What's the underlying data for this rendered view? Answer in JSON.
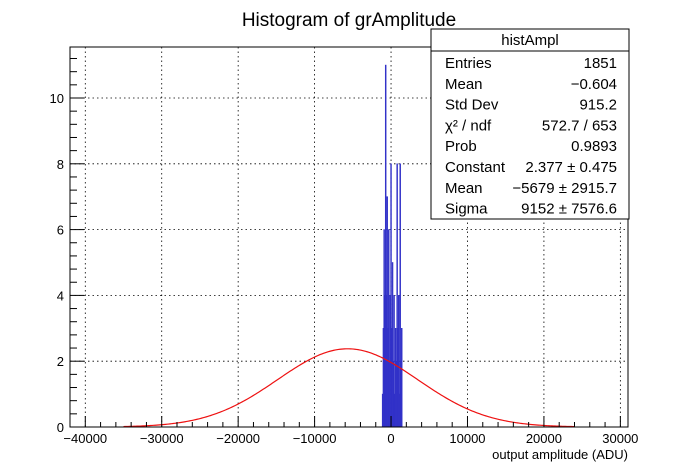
{
  "chart_data": {
    "type": "bar",
    "title": "Histogram of grAmplitude",
    "xlabel": "output amplitude (ADU)",
    "ylabel": "",
    "xlim": [
      -42000,
      31000
    ],
    "ylim": [
      0,
      11.55
    ],
    "xticks": [
      -40000,
      -30000,
      -20000,
      -10000,
      0,
      10000,
      20000,
      30000
    ],
    "xtick_labels": [
      "−40000",
      "−30000",
      "−20000",
      "−10000",
      "0",
      "10000",
      "20000",
      "30000"
    ],
    "yticks": [
      0,
      2,
      4,
      6,
      8,
      10
    ],
    "ytick_labels": [
      "0",
      "2",
      "4",
      "6",
      "8",
      "10"
    ],
    "grid": true,
    "colors": {
      "histogram": "#3232c8",
      "fit": "#ee1111"
    },
    "histogram": {
      "bin_width": 110,
      "bins": [
        {
          "x": -1100,
          "count": 1
        },
        {
          "x": -1000,
          "count": 3
        },
        {
          "x": -900,
          "count": 6
        },
        {
          "x": -800,
          "count": 4
        },
        {
          "x": -700,
          "count": 11
        },
        {
          "x": -600,
          "count": 4
        },
        {
          "x": -500,
          "count": 7
        },
        {
          "x": -400,
          "count": 3
        },
        {
          "x": -300,
          "count": 6
        },
        {
          "x": -200,
          "count": 2
        },
        {
          "x": -100,
          "count": 4
        },
        {
          "x": 0,
          "count": 8
        },
        {
          "x": 100,
          "count": 3
        },
        {
          "x": 200,
          "count": 5
        },
        {
          "x": 300,
          "count": 2
        },
        {
          "x": 400,
          "count": 4
        },
        {
          "x": 500,
          "count": 1
        },
        {
          "x": 600,
          "count": 3
        },
        {
          "x": 700,
          "count": 2
        },
        {
          "x": 800,
          "count": 8
        },
        {
          "x": 900,
          "count": 3
        },
        {
          "x": 1000,
          "count": 4
        },
        {
          "x": 1100,
          "count": 1
        },
        {
          "x": 1200,
          "count": 8
        },
        {
          "x": 1300,
          "count": 2
        },
        {
          "x": 1400,
          "count": 3
        }
      ]
    },
    "fit": {
      "function": "gaus",
      "constant": 2.377,
      "mean": -5679,
      "sigma": 9152,
      "x_range": [
        -35000,
        24000
      ]
    },
    "stats_box": {
      "title": "histAmpl",
      "rows": [
        {
          "label": "Entries",
          "value": "1851"
        },
        {
          "label": "Mean",
          "value": "−0.604"
        },
        {
          "label": "Std Dev",
          "value": "915.2"
        },
        {
          "label": "χ² / ndf",
          "value": "572.7 / 653"
        },
        {
          "label": "Prob",
          "value": "0.9893"
        },
        {
          "label": "Constant",
          "value": "2.377 ± 0.475"
        },
        {
          "label": "Mean",
          "value": "−5679 ± 2915.7"
        },
        {
          "label": "Sigma",
          "value": "9152 ± 7576.6"
        }
      ]
    }
  }
}
